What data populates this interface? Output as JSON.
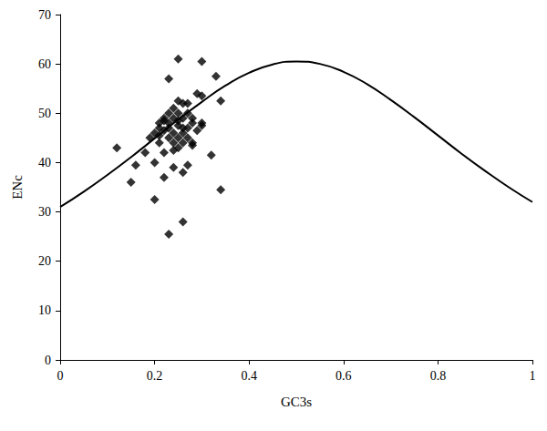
{
  "chart_data": {
    "type": "scatter",
    "x_label": "GC3s",
    "y_label": "ENc",
    "xlim": [
      0,
      1
    ],
    "xticks": [
      0,
      0.2,
      0.4,
      0.6,
      0.8,
      1
    ],
    "ylim": [
      0,
      70
    ],
    "yticks": [
      0,
      10,
      20,
      30,
      40,
      50,
      60,
      70
    ],
    "grid": false,
    "series": [
      {
        "type": "scatter",
        "marker": "diamond",
        "color": "#000000",
        "x": [
          0.12,
          0.15,
          0.16,
          0.18,
          0.19,
          0.2,
          0.2,
          0.2,
          0.21,
          0.21,
          0.21,
          0.22,
          0.22,
          0.22,
          0.22,
          0.23,
          0.23,
          0.23,
          0.23,
          0.23,
          0.23,
          0.24,
          0.24,
          0.24,
          0.24,
          0.24,
          0.25,
          0.25,
          0.25,
          0.25,
          0.25,
          0.25,
          0.26,
          0.26,
          0.26,
          0.26,
          0.26,
          0.26,
          0.27,
          0.27,
          0.27,
          0.27,
          0.27,
          0.28,
          0.28,
          0.28,
          0.29,
          0.29,
          0.3,
          0.3,
          0.3,
          0.3,
          0.32,
          0.33,
          0.34,
          0.34,
          0.22,
          0.21,
          0.24,
          0.26,
          0.25,
          0.28
        ],
        "values": [
          43,
          36,
          39.5,
          42,
          45,
          32.5,
          40,
          46,
          47,
          44,
          48,
          49,
          46.5,
          42,
          37,
          25.5,
          57,
          48,
          45,
          50,
          47,
          39,
          44,
          46,
          49,
          51,
          61,
          47.5,
          45,
          48.5,
          50,
          43,
          28,
          52,
          49,
          46,
          44,
          38,
          47,
          50,
          45,
          39.5,
          52,
          48,
          44,
          43.5,
          46.5,
          54,
          53.5,
          47.5,
          48,
          60.5,
          41.5,
          57.5,
          52.5,
          34.5,
          48.5,
          45.5,
          42.5,
          47,
          52.5,
          49
        ]
      },
      {
        "type": "line",
        "line_style": "solid",
        "color": "#000000",
        "x": [
          0,
          0.05,
          0.1,
          0.15,
          0.2,
          0.25,
          0.3,
          0.35,
          0.4,
          0.45,
          0.5,
          0.55,
          0.6,
          0.65,
          0.7,
          0.75,
          0.8,
          0.85,
          0.9,
          0.95,
          1
        ],
        "values": [
          31,
          34.1,
          37.5,
          41.1,
          44.9,
          48.7,
          52.3,
          55.6,
          58.2,
          59.9,
          60.5,
          60,
          58.4,
          55.9,
          52.7,
          49.2,
          45.5,
          41.8,
          38.3,
          35,
          32
        ]
      }
    ]
  }
}
